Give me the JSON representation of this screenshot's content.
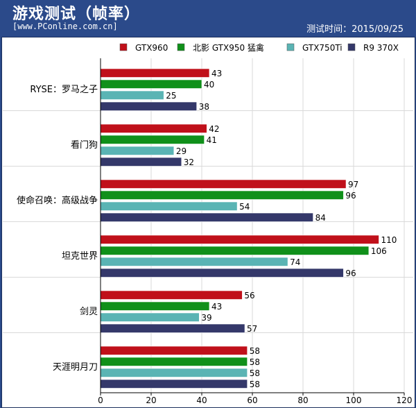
{
  "header": {
    "title": "游戏测试（帧率）",
    "source": "[www.PConline.com.cn]",
    "date": "测试时间：2015/09/25"
  },
  "colors": {
    "background": "#2b4a8a",
    "grid": "#d9d9d9",
    "axis": "#000000"
  },
  "chart_data": {
    "type": "bar",
    "orientation": "horizontal",
    "title": "游戏测试（帧率）",
    "categories": [
      "RYSE：罗马之子",
      "看门狗",
      "使命召唤：高级战争",
      "坦克世界",
      "剑灵",
      "天涯明月刀"
    ],
    "series": [
      {
        "name": "GTX960",
        "color": "#c0101a",
        "values": [
          43,
          42,
          97,
          110,
          56,
          58
        ]
      },
      {
        "name": "北影 GTX950 猛禽",
        "color": "#10901a",
        "values": [
          40,
          41,
          96,
          106,
          43,
          58
        ]
      },
      {
        "name": "GTX750Ti",
        "color": "#5ab4b4",
        "values": [
          25,
          29,
          54,
          74,
          39,
          58
        ]
      },
      {
        "name": "R9 370X",
        "color": "#34386a",
        "values": [
          38,
          32,
          84,
          96,
          57,
          58
        ]
      }
    ],
    "xlim": [
      0,
      120
    ],
    "xticks": [
      0,
      20,
      40,
      60,
      80,
      100,
      120
    ],
    "grid": true,
    "legend_position": "top-right"
  }
}
